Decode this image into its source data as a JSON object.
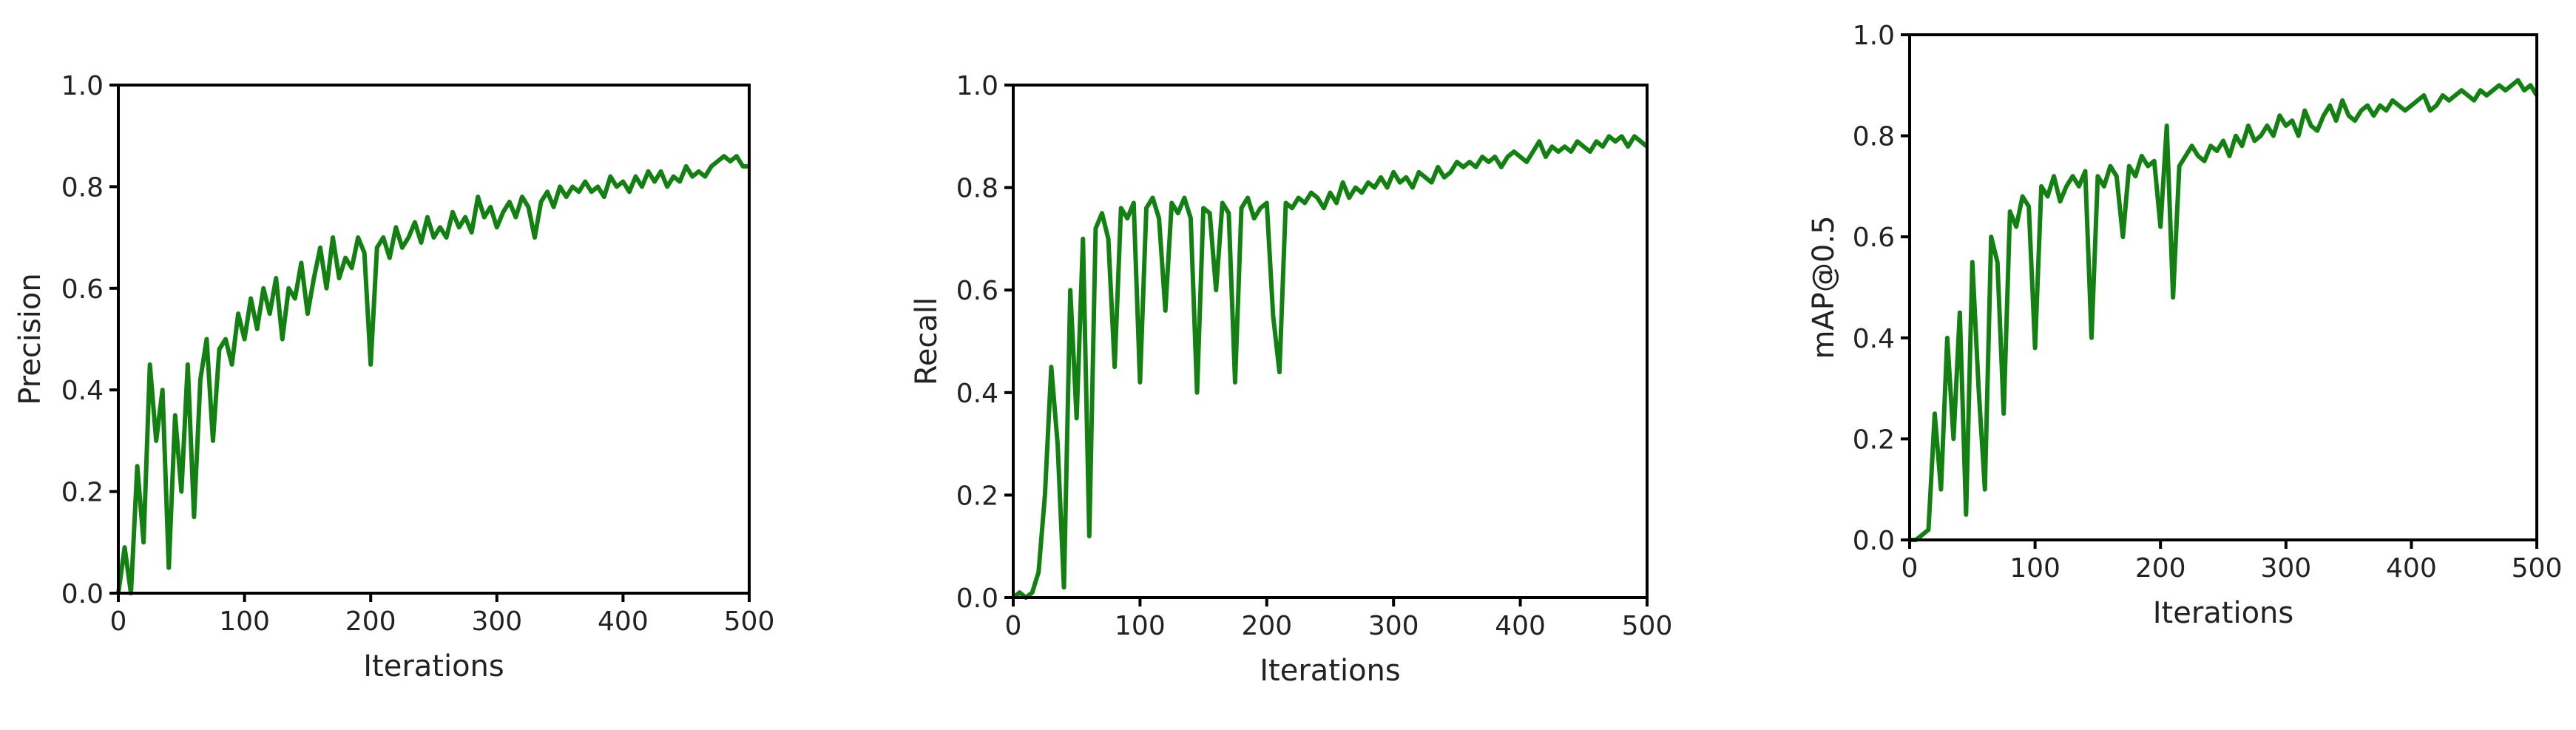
{
  "chart_data": [
    {
      "type": "line",
      "xlabel": "Iterations",
      "ylabel": "Precision",
      "color": "#128112",
      "xlim": [
        0,
        500
      ],
      "ylim": [
        0,
        1
      ],
      "xticks": [
        0,
        100,
        200,
        300,
        400,
        500
      ],
      "yticks": [
        {
          "value": 0,
          "label": "0.0"
        },
        0.2,
        0.4,
        0.6,
        0.8,
        {
          "value": 1,
          "label": "1.0"
        }
      ],
      "x": [
        0,
        5,
        10,
        15,
        20,
        25,
        30,
        35,
        40,
        45,
        50,
        55,
        60,
        65,
        70,
        75,
        80,
        85,
        90,
        95,
        100,
        105,
        110,
        115,
        120,
        125,
        130,
        135,
        140,
        145,
        150,
        155,
        160,
        165,
        170,
        175,
        180,
        185,
        190,
        195,
        200,
        205,
        210,
        215,
        220,
        225,
        230,
        235,
        240,
        245,
        250,
        255,
        260,
        265,
        270,
        275,
        280,
        285,
        290,
        295,
        300,
        305,
        310,
        315,
        320,
        325,
        330,
        335,
        340,
        345,
        350,
        355,
        360,
        365,
        370,
        375,
        380,
        385,
        390,
        395,
        400,
        405,
        410,
        415,
        420,
        425,
        430,
        435,
        440,
        445,
        450,
        455,
        460,
        465,
        470,
        475,
        480,
        485,
        490,
        495,
        500
      ],
      "values": [
        0.0,
        0.09,
        0.0,
        0.25,
        0.1,
        0.45,
        0.3,
        0.4,
        0.05,
        0.35,
        0.2,
        0.45,
        0.15,
        0.42,
        0.5,
        0.3,
        0.48,
        0.5,
        0.45,
        0.55,
        0.5,
        0.58,
        0.52,
        0.6,
        0.55,
        0.62,
        0.5,
        0.6,
        0.58,
        0.65,
        0.55,
        0.62,
        0.68,
        0.6,
        0.7,
        0.62,
        0.66,
        0.64,
        0.7,
        0.67,
        0.45,
        0.68,
        0.7,
        0.66,
        0.72,
        0.68,
        0.7,
        0.73,
        0.69,
        0.74,
        0.7,
        0.72,
        0.7,
        0.75,
        0.72,
        0.74,
        0.71,
        0.78,
        0.74,
        0.76,
        0.72,
        0.75,
        0.77,
        0.74,
        0.78,
        0.76,
        0.7,
        0.77,
        0.79,
        0.76,
        0.8,
        0.78,
        0.8,
        0.79,
        0.81,
        0.79,
        0.8,
        0.78,
        0.82,
        0.8,
        0.81,
        0.79,
        0.82,
        0.8,
        0.83,
        0.81,
        0.83,
        0.8,
        0.82,
        0.81,
        0.84,
        0.82,
        0.83,
        0.82,
        0.84,
        0.85,
        0.86,
        0.85,
        0.86,
        0.84,
        0.84
      ]
    },
    {
      "type": "line",
      "xlabel": "Iterations",
      "ylabel": "Recall",
      "color": "#128112",
      "xlim": [
        0,
        500
      ],
      "ylim": [
        0,
        1
      ],
      "xticks": [
        0,
        100,
        200,
        300,
        400,
        500
      ],
      "yticks": [
        {
          "value": 0,
          "label": "0.0"
        },
        0.2,
        0.4,
        0.6,
        0.8,
        {
          "value": 1,
          "label": "1.0"
        }
      ],
      "x": [
        0,
        5,
        10,
        15,
        20,
        25,
        30,
        35,
        40,
        45,
        50,
        55,
        60,
        65,
        70,
        75,
        80,
        85,
        90,
        95,
        100,
        105,
        110,
        115,
        120,
        125,
        130,
        135,
        140,
        145,
        150,
        155,
        160,
        165,
        170,
        175,
        180,
        185,
        190,
        195,
        200,
        205,
        210,
        215,
        220,
        225,
        230,
        235,
        240,
        245,
        250,
        255,
        260,
        265,
        270,
        275,
        280,
        285,
        290,
        295,
        300,
        305,
        310,
        315,
        320,
        325,
        330,
        335,
        340,
        345,
        350,
        355,
        360,
        365,
        370,
        375,
        380,
        385,
        390,
        395,
        400,
        405,
        410,
        415,
        420,
        425,
        430,
        435,
        440,
        445,
        450,
        455,
        460,
        465,
        470,
        475,
        480,
        485,
        490,
        495,
        500
      ],
      "values": [
        0.0,
        0.01,
        0.0,
        0.01,
        0.05,
        0.2,
        0.45,
        0.3,
        0.02,
        0.6,
        0.35,
        0.7,
        0.12,
        0.72,
        0.75,
        0.7,
        0.45,
        0.76,
        0.74,
        0.77,
        0.42,
        0.76,
        0.78,
        0.74,
        0.56,
        0.77,
        0.75,
        0.78,
        0.74,
        0.4,
        0.76,
        0.75,
        0.6,
        0.77,
        0.75,
        0.42,
        0.76,
        0.78,
        0.74,
        0.76,
        0.77,
        0.55,
        0.44,
        0.77,
        0.76,
        0.78,
        0.77,
        0.79,
        0.78,
        0.76,
        0.79,
        0.77,
        0.81,
        0.78,
        0.8,
        0.79,
        0.81,
        0.8,
        0.82,
        0.8,
        0.83,
        0.81,
        0.82,
        0.8,
        0.83,
        0.82,
        0.81,
        0.84,
        0.82,
        0.83,
        0.85,
        0.84,
        0.85,
        0.84,
        0.86,
        0.85,
        0.86,
        0.84,
        0.86,
        0.87,
        0.86,
        0.85,
        0.87,
        0.89,
        0.86,
        0.88,
        0.87,
        0.88,
        0.87,
        0.89,
        0.88,
        0.87,
        0.89,
        0.88,
        0.9,
        0.89,
        0.9,
        0.88,
        0.9,
        0.89,
        0.88
      ]
    },
    {
      "type": "line",
      "xlabel": "Iterations",
      "ylabel": "mAP@0.5",
      "color": "#128112",
      "xlim": [
        0,
        500
      ],
      "ylim": [
        0,
        1
      ],
      "xticks": [
        0,
        100,
        200,
        300,
        400,
        500
      ],
      "yticks": [
        {
          "value": 0,
          "label": "0.0"
        },
        0.2,
        0.4,
        0.6,
        0.8,
        {
          "value": 1,
          "label": "1.0"
        }
      ],
      "x": [
        0,
        5,
        10,
        15,
        20,
        25,
        30,
        35,
        40,
        45,
        50,
        55,
        60,
        65,
        70,
        75,
        80,
        85,
        90,
        95,
        100,
        105,
        110,
        115,
        120,
        125,
        130,
        135,
        140,
        145,
        150,
        155,
        160,
        165,
        170,
        175,
        180,
        185,
        190,
        195,
        200,
        205,
        210,
        215,
        220,
        225,
        230,
        235,
        240,
        245,
        250,
        255,
        260,
        265,
        270,
        275,
        280,
        285,
        290,
        295,
        300,
        305,
        310,
        315,
        320,
        325,
        330,
        335,
        340,
        345,
        350,
        355,
        360,
        365,
        370,
        375,
        380,
        385,
        390,
        395,
        400,
        405,
        410,
        415,
        420,
        425,
        430,
        435,
        440,
        445,
        450,
        455,
        460,
        465,
        470,
        475,
        480,
        485,
        490,
        495,
        500
      ],
      "values": [
        0.0,
        0.0,
        0.01,
        0.02,
        0.25,
        0.1,
        0.4,
        0.2,
        0.45,
        0.05,
        0.55,
        0.3,
        0.1,
        0.6,
        0.55,
        0.25,
        0.65,
        0.62,
        0.68,
        0.66,
        0.38,
        0.7,
        0.68,
        0.72,
        0.67,
        0.7,
        0.72,
        0.7,
        0.73,
        0.4,
        0.72,
        0.7,
        0.74,
        0.72,
        0.6,
        0.74,
        0.72,
        0.76,
        0.74,
        0.75,
        0.62,
        0.82,
        0.48,
        0.74,
        0.76,
        0.78,
        0.76,
        0.75,
        0.78,
        0.77,
        0.79,
        0.76,
        0.8,
        0.78,
        0.82,
        0.79,
        0.8,
        0.82,
        0.8,
        0.84,
        0.82,
        0.83,
        0.8,
        0.85,
        0.82,
        0.81,
        0.84,
        0.86,
        0.83,
        0.87,
        0.84,
        0.83,
        0.85,
        0.86,
        0.84,
        0.86,
        0.85,
        0.87,
        0.86,
        0.85,
        0.86,
        0.87,
        0.88,
        0.85,
        0.86,
        0.88,
        0.87,
        0.88,
        0.89,
        0.88,
        0.87,
        0.89,
        0.88,
        0.89,
        0.9,
        0.89,
        0.9,
        0.91,
        0.89,
        0.9,
        0.88
      ]
    }
  ]
}
